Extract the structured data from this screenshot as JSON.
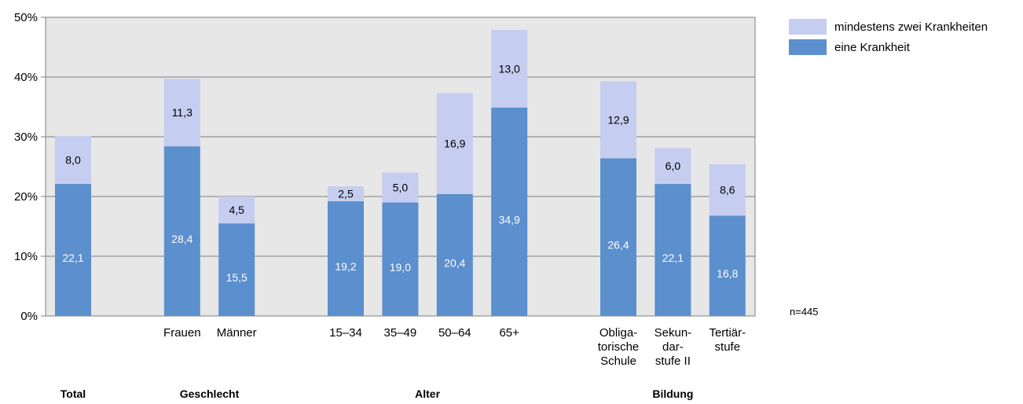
{
  "chart_data": {
    "type": "bar",
    "stacked": true,
    "ylim": [
      0,
      50
    ],
    "yticks": [
      "0%",
      "10%",
      "20%",
      "30%",
      "40%",
      "50%"
    ],
    "grid": true,
    "legend_position": "top-right",
    "categories": [
      [
        "",
        "",
        ""
      ],
      [
        "Frauen",
        "",
        ""
      ],
      [
        "Männer",
        "",
        ""
      ],
      [
        "15–34",
        "",
        ""
      ],
      [
        "35–49",
        "",
        ""
      ],
      [
        "50–64",
        "",
        ""
      ],
      [
        "65+",
        "",
        ""
      ],
      [
        "Obliga-",
        "torische",
        "Schule"
      ],
      [
        "Sekun-",
        "dar-",
        "stufe II"
      ],
      [
        "Tertiär-",
        "stufe",
        ""
      ]
    ],
    "groups": [
      {
        "label": "Total",
        "from": 0,
        "to": 0
      },
      {
        "label": "Geschlecht",
        "from": 1,
        "to": 2
      },
      {
        "label": "Alter",
        "from": 3,
        "to": 6
      },
      {
        "label": "Bildung",
        "from": 7,
        "to": 9
      }
    ],
    "series": [
      {
        "name": "eine Krankheit",
        "color": "#5b8fcd",
        "values": [
          22.1,
          28.4,
          15.5,
          19.2,
          19.0,
          20.4,
          34.9,
          26.4,
          22.1,
          16.8
        ],
        "labels": [
          "22,1",
          "28,4",
          "15,5",
          "19,2",
          "19,0",
          "20,4",
          "34,9",
          "26,4",
          "22,1",
          "16,8"
        ]
      },
      {
        "name": "mindestens zwei Krankheiten",
        "color": "#c5cdf0",
        "values": [
          8.0,
          11.3,
          4.5,
          2.5,
          5.0,
          16.9,
          13.0,
          12.9,
          6.0,
          8.6
        ],
        "labels": [
          "8,0",
          "11,3",
          "4,5",
          "2,5",
          "5,0",
          "16,9",
          "13,0",
          "12,9",
          "6,0",
          "8,6"
        ]
      }
    ],
    "legend_order": [
      1,
      0
    ],
    "note": "n=445"
  }
}
